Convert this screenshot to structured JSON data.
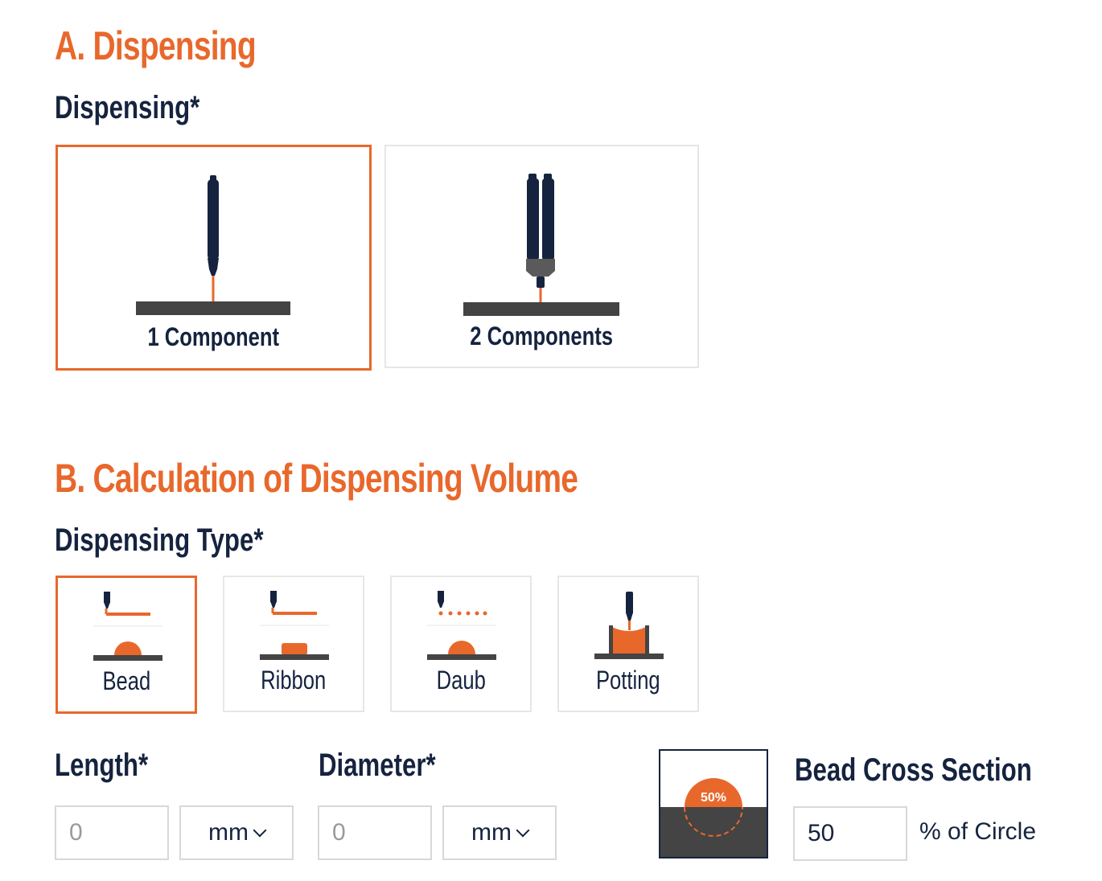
{
  "section_a": {
    "title": "A. Dispensing",
    "field_label": "Dispensing*",
    "options": [
      {
        "label": "1 Component",
        "selected": true,
        "icon": "single-syringe-icon"
      },
      {
        "label": "2 Components",
        "selected": false,
        "icon": "dual-syringe-icon"
      }
    ]
  },
  "section_b": {
    "title": "B. Calculation of Dispensing Volume",
    "field_label": "Dispensing Type*",
    "types": [
      {
        "label": "Bead",
        "selected": true,
        "icon": "bead-icon"
      },
      {
        "label": "Ribbon",
        "selected": false,
        "icon": "ribbon-icon"
      },
      {
        "label": "Daub",
        "selected": false,
        "icon": "daub-icon"
      },
      {
        "label": "Potting",
        "selected": false,
        "icon": "potting-icon"
      }
    ],
    "length": {
      "label": "Length*",
      "placeholder": "0",
      "unit": "mm"
    },
    "diameter": {
      "label": "Diameter*",
      "placeholder": "0",
      "unit": "mm"
    },
    "cross_section": {
      "label": "Bead Cross Section",
      "value": "50",
      "unit_text": "% of Circle",
      "badge": "50%"
    }
  },
  "colors": {
    "accent": "#e8682c",
    "navy": "#15233f",
    "dark_gray": "#444444",
    "border": "#e6e6e6"
  }
}
